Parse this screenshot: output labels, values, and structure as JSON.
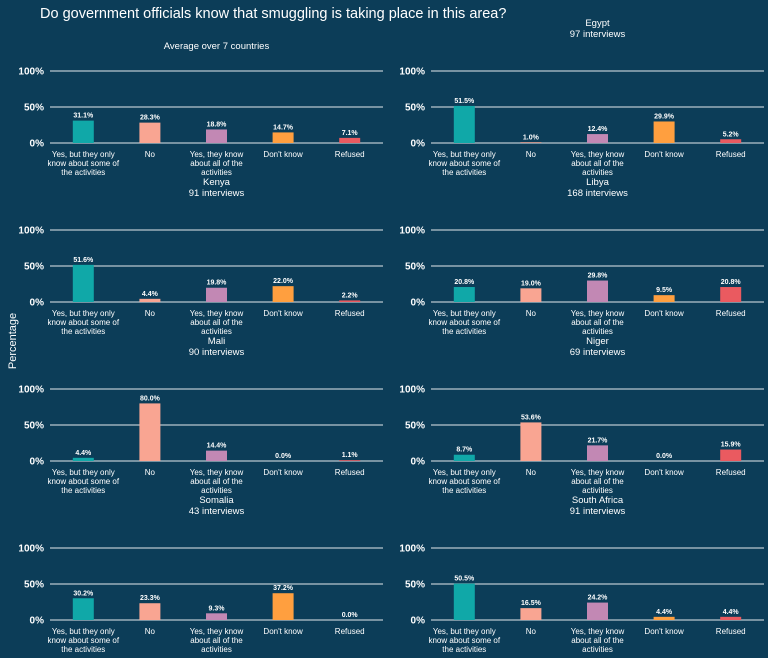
{
  "title": "Do government officials know that smuggling is taking place in this area?",
  "ylabel": "Percentage",
  "colors": {
    "background": "#0c3d58",
    "gridline": "#b9c7cf",
    "text": "#ffffff",
    "bars": [
      "#10a8a8",
      "#f9a592",
      "#c288b4",
      "#ff9f3f",
      "#ea5a60"
    ]
  },
  "chart_data": {
    "type": "bar",
    "categories": [
      "Yes, but they only know about some of the activities",
      "No",
      "Yes, they know about all of the activities",
      "Don't know",
      "Refused"
    ],
    "category_lines": [
      [
        "Yes, but they only",
        "know about some of",
        "the activities"
      ],
      [
        "No"
      ],
      [
        "Yes, they know",
        "about all of the",
        "activities"
      ],
      [
        "Don't know"
      ],
      [
        "Refused"
      ]
    ],
    "ylabel": "Percentage",
    "ylim": [
      0,
      100
    ],
    "yticks": [
      0,
      50,
      100
    ],
    "ytick_labels": [
      "0%",
      "50%",
      "100%"
    ],
    "grid": true,
    "panels": [
      {
        "title": "Average over 7 countries",
        "subtitle": "",
        "values": [
          31.1,
          28.3,
          18.8,
          14.7,
          7.1
        ],
        "labels": [
          "31.1%",
          "28.3%",
          "18.8%",
          "14.7%",
          "7.1%"
        ]
      },
      {
        "title": "Egypt",
        "subtitle": "97 interviews",
        "values": [
          51.5,
          1.0,
          12.4,
          29.9,
          5.2
        ],
        "labels": [
          "51.5%",
          "1.0%",
          "12.4%",
          "29.9%",
          "5.2%"
        ]
      },
      {
        "title": "Kenya",
        "subtitle": "91 interviews",
        "values": [
          51.6,
          4.4,
          19.8,
          22.0,
          2.2
        ],
        "labels": [
          "51.6%",
          "4.4%",
          "19.8%",
          "22.0%",
          "2.2%"
        ]
      },
      {
        "title": "Libya",
        "subtitle": "168 interviews",
        "values": [
          20.8,
          19.0,
          29.8,
          9.5,
          20.8
        ],
        "labels": [
          "20.8%",
          "19.0%",
          "29.8%",
          "9.5%",
          "20.8%"
        ]
      },
      {
        "title": "Mali",
        "subtitle": "90 interviews",
        "values": [
          4.4,
          80.0,
          14.4,
          0.0,
          1.1
        ],
        "labels": [
          "4.4%",
          "80.0%",
          "14.4%",
          "0.0%",
          "1.1%"
        ]
      },
      {
        "title": "Niger",
        "subtitle": "69 interviews",
        "values": [
          8.7,
          53.6,
          21.7,
          0.0,
          15.9
        ],
        "labels": [
          "8.7%",
          "53.6%",
          "21.7%",
          "0.0%",
          "15.9%"
        ]
      },
      {
        "title": "Somalia",
        "subtitle": "43 interviews",
        "values": [
          30.2,
          23.3,
          9.3,
          37.2,
          0.0
        ],
        "labels": [
          "30.2%",
          "23.3%",
          "9.3%",
          "37.2%",
          "0.0%"
        ]
      },
      {
        "title": "South Africa",
        "subtitle": "91 interviews",
        "values": [
          50.5,
          16.5,
          24.2,
          4.4,
          4.4
        ],
        "labels": [
          "50.5%",
          "16.5%",
          "24.2%",
          "4.4%",
          "4.4%"
        ]
      }
    ]
  }
}
